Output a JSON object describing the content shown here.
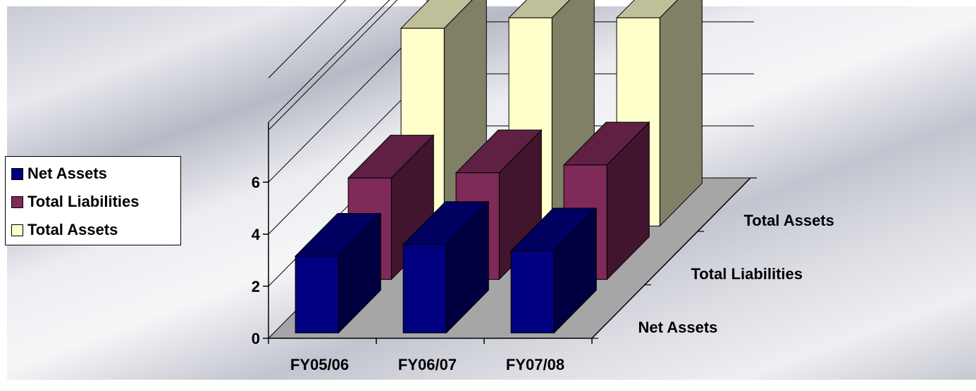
{
  "chart_data": {
    "type": "bar",
    "variant": "3d-column",
    "categories": [
      "FY05/06",
      "FY06/07",
      "FY07/08"
    ],
    "series": [
      {
        "name": "Net Assets",
        "values": [
          2.95,
          3.4,
          3.15
        ],
        "color": "#000080"
      },
      {
        "name": "Total Liabilities",
        "values": [
          3.9,
          4.1,
          4.4
        ],
        "color": "#7f2a59"
      },
      {
        "name": "Total Assets",
        "values": [
          7.6,
          8.0,
          8.0
        ],
        "color": "#ffffcc"
      }
    ],
    "y_ticks": [
      "0",
      "2",
      "4",
      "6"
    ],
    "ylim": [
      0,
      6
    ],
    "grid": true,
    "legend_position": "left"
  }
}
